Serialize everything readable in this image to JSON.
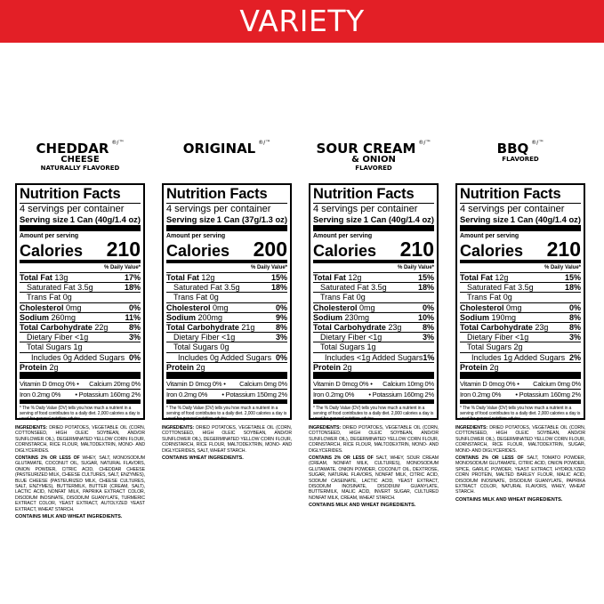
{
  "banner": {
    "title": "VARIETY"
  },
  "common": {
    "nutrition_facts": "Nutrition Facts",
    "serving_size_label": "Serving size",
    "amount_per_serving": "Amount per serving",
    "calories_label": "Calories",
    "daily_value_label": "% Daily Value*",
    "footnote": "* The % Daily Value (DV) tells you how much a nutrient in a serving of food contributes to a daily diet. 2,000 calories a day is used for general nutrition advice.",
    "ingredients_label": "INGREDIENTS:",
    "contains_2pct_label": "CONTAINS 2% OR LESS OF",
    "registered_mark": "®/™"
  },
  "products": [
    {
      "name": "CHEDDAR",
      "name2": "CHEESE",
      "subtitle": "NATURALLY FLAVORED",
      "servings": "4 servings per container",
      "serving_size": "1 Can (40g/1.4 oz)",
      "calories": "210",
      "rows": [
        [
          "Total Fat",
          "13g",
          "17%"
        ],
        [
          "Saturated Fat",
          "3.5g",
          "18%"
        ],
        [
          "Trans Fat",
          "0g",
          ""
        ],
        [
          "Cholesterol",
          "0mg",
          "0%"
        ],
        [
          "Sodium",
          "260mg",
          "11%"
        ],
        [
          "Total Carbohydrate",
          "22g",
          "8%"
        ],
        [
          "Dietary Fiber",
          "<1g",
          "3%"
        ],
        [
          "Total Sugars",
          "1g",
          ""
        ],
        [
          "Includes 0g Added Sugars",
          "",
          "0%"
        ],
        [
          "Protein",
          "2g",
          ""
        ]
      ],
      "vitamin_d": "Vitamin D 0mcg 0% •",
      "calcium": "Calcium 20mg 0%",
      "iron": "Iron 0.2mg 0%",
      "potassium": "• Potassium 160mg 2%",
      "ingredients_main": "DRIED POTATOES, VEGETABLE OIL (CORN, COTTONSEED, HIGH OLEIC SOYBEAN, AND/OR SUNFLOWER OIL), DEGERMINATED YELLOW CORN FLOUR, CORNSTARCH, RICE FLOUR, MALTODEXTRIN, MONO- AND DIGLYCERIDES.",
      "ingredients_minor": "WHEY, SALT, MONOSODIUM GLUTAMATE, COCONUT OIL, SUGAR, NATURAL FLAVORS, ONION POWDER, CITRIC ACID, CHEDDAR CHEESE (PASTEURIZED MILK, CHEESE CULTURES, SALT, ENZYMES), BLUE CHEESE (PASTEURIZED MILK, CHEESE CULTURES, SALT, ENZYMES), BUTTERMILK, BUTTER (CREAM, SALT), LACTIC ACID, NONFAT MILK, PAPRIKA EXTRACT COLOR, DISODIUM INOSINATE, DISODIUM GUANYLATE, TURMERIC EXTRACT COLOR, YEAST EXTRACT, AUTOLYZED YEAST EXTRACT, WHEAT STARCH.",
      "contains": "CONTAINS MILK AND WHEAT INGREDIENTS."
    },
    {
      "name": "ORIGINAL",
      "name2": "",
      "subtitle": "",
      "servings": "4 servings per container",
      "serving_size": "1 Can (37g/1.3 oz)",
      "calories": "200",
      "rows": [
        [
          "Total Fat",
          "12g",
          "15%"
        ],
        [
          "Saturated Fat",
          "3.5g",
          "18%"
        ],
        [
          "Trans Fat",
          "0g",
          ""
        ],
        [
          "Cholesterol",
          "0mg",
          "0%"
        ],
        [
          "Sodium",
          "200mg",
          "9%"
        ],
        [
          "Total Carbohydrate",
          "21g",
          "8%"
        ],
        [
          "Dietary Fiber",
          "<1g",
          "3%"
        ],
        [
          "Total Sugars",
          "0g",
          ""
        ],
        [
          "Includes 0g Added Sugars",
          "",
          "0%"
        ],
        [
          "Protein",
          "2g",
          ""
        ]
      ],
      "vitamin_d": "Vitamin D 0mcg 0% •",
      "calcium": "Calcium 0mg 0%",
      "iron": "Iron 0.2mg 0%",
      "potassium": "• Potassium 150mg 2%",
      "ingredients_main": "DRIED POTATOES, VEGETABLE OIL (CORN, COTTONSEED, HIGH OLEIC SOYBEAN, AND/OR SUNFLOWER OIL), DEGERMINATED YELLOW CORN FLOUR, CORNSTARCH, RICE FLOUR, MALTODEXTRIN, MONO- AND DIGLYCERIDES, SALT, WHEAT STARCH.",
      "ingredients_minor": "",
      "contains": "CONTAINS WHEAT INGREDIENTS."
    },
    {
      "name": "SOUR CREAM",
      "name2": "& ONION",
      "subtitle": "FLAVORED",
      "servings": "4 servings per container",
      "serving_size": "1 Can (40g/1.4 oz)",
      "calories": "210",
      "rows": [
        [
          "Total Fat",
          "12g",
          "15%"
        ],
        [
          "Saturated Fat",
          "3.5g",
          "18%"
        ],
        [
          "Trans Fat",
          "0g",
          ""
        ],
        [
          "Cholesterol",
          "0mg",
          "0%"
        ],
        [
          "Sodium",
          "230mg",
          "10%"
        ],
        [
          "Total Carbohydrate",
          "23g",
          "8%"
        ],
        [
          "Dietary Fiber",
          "<1g",
          "3%"
        ],
        [
          "Total Sugars",
          "1g",
          ""
        ],
        [
          "Includes <1g Added Sugars",
          "",
          "1%"
        ],
        [
          "Protein",
          "2g",
          ""
        ]
      ],
      "vitamin_d": "Vitamin D 0mcg 0% •",
      "calcium": "Calcium 10mg 0%",
      "iron": "Iron 0.2mg 0%",
      "potassium": "• Potassium 160mg 2%",
      "ingredients_main": "DRIED POTATOES, VEGETABLE OIL (CORN, COTTONSEED, HIGH OLEIC SOYBEAN, AND/OR SUNFLOWER OIL), DEGERMINATED YELLOW CORN FLOUR, CORNSTARCH, RICE FLOUR, MALTODEXTRIN, MONO- AND DIGLYCERIDES.",
      "ingredients_minor": "SALT, WHEY, SOUR CREAM (CREAM, NONFAT MILK, CULTURES), MONOSODIUM GLUTAMATE, ONION POWDER, COCONUT OIL, DEXTROSE, SUGAR, NATURAL FLAVORS, NONFAT MILK, CITRIC ACID, SODIUM CASEINATE, LACTIC ACID, YEAST EXTRACT, DISODIUM INOSINATE, DISODIUM GUANYLATE, BUTTERMILK, MALIC ACID, INVERT SUGAR, CULTURED NONFAT MILK, CREAM, WHEAT STARCH.",
      "contains": "CONTAINS MILK AND WHEAT INGREDIENTS."
    },
    {
      "name": "BBQ",
      "name2": "",
      "subtitle": "FLAVORED",
      "servings": "4 servings per container",
      "serving_size": "1 Can (40g/1.4 oz)",
      "calories": "210",
      "rows": [
        [
          "Total Fat",
          "12g",
          "15%"
        ],
        [
          "Saturated Fat",
          "3.5g",
          "18%"
        ],
        [
          "Trans Fat",
          "0g",
          ""
        ],
        [
          "Cholesterol",
          "0mg",
          "0%"
        ],
        [
          "Sodium",
          "190mg",
          "8%"
        ],
        [
          "Total Carbohydrate",
          "23g",
          "8%"
        ],
        [
          "Dietary Fiber",
          "<1g",
          "3%"
        ],
        [
          "Total Sugars",
          "2g",
          ""
        ],
        [
          "Includes 1g Added Sugars",
          "",
          "2%"
        ],
        [
          "Protein",
          "2g",
          ""
        ]
      ],
      "vitamin_d": "Vitamin D 0mcg 0% •",
      "calcium": "Calcium 0mg 0%",
      "iron": "Iron 0.2mg 0%",
      "potassium": "• Potassium 160mg 2%",
      "ingredients_main": "DRIED POTATOES, VEGETABLE OIL (CORN, COTTONSEED, HIGH OLEIC SOYBEAN, AND/OR SUNFLOWER OIL), DEGERMINATED YELLOW CORN FLOUR, CORNSTARCH, RICE FLOUR, MALTODEXTRIN, SUGAR, MONO- AND DIGLYCERIDES.",
      "ingredients_minor": "SALT, TOMATO POWDER, MONOSODIUM GLUTAMATE, CITRIC ACID, ONION POWDER, SPICE, GARLIC POWDER, YEAST EXTRACT, HYDROLYZED CORN PROTEIN, MALTED BARLEY FLOUR, MALIC ACID, DISODIUM INOSINATE, DISODIUM GUANYLATE, PAPRIKA EXTRACT COLOR, NATURAL FLAVORS, WHEY, WHEAT STARCH.",
      "contains": "CONTAINS MILK AND WHEAT INGREDIENTS."
    }
  ],
  "colors": {
    "banner": "#e31f26"
  }
}
